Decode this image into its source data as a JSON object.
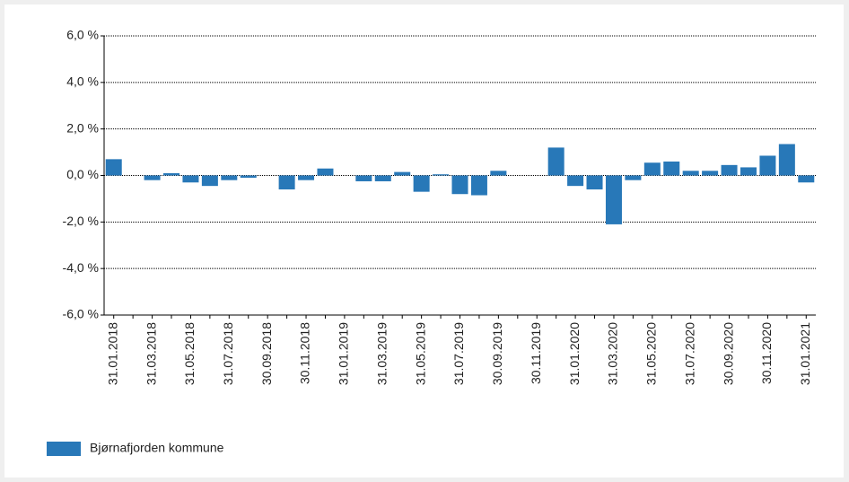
{
  "chart_data": {
    "type": "bar",
    "categories": [
      "31.01.2018",
      null,
      "31.03.2018",
      null,
      "31.05.2018",
      null,
      "31.07.2018",
      null,
      "30.09.2018",
      null,
      "30.11.2018",
      null,
      "31.01.2019",
      null,
      "31.03.2019",
      null,
      "31.05.2019",
      null,
      "31.07.2019",
      null,
      "30.09.2019",
      null,
      "30.11.2019",
      null,
      "31.01.2020",
      null,
      "31.03.2020",
      null,
      "31.05.2020",
      null,
      "31.07.2020",
      null,
      "30.09.2020",
      null,
      "30.11.2020",
      null,
      "31.01.2021"
    ],
    "series": [
      {
        "name": "Bjørnafjorden kommune",
        "color": "#2878b8",
        "values": [
          0.7,
          0.0,
          -0.2,
          0.1,
          -0.3,
          -0.45,
          -0.2,
          -0.1,
          0.0,
          -0.6,
          -0.2,
          0.3,
          0.0,
          -0.25,
          -0.25,
          0.15,
          -0.7,
          0.05,
          -0.8,
          -0.85,
          0.2,
          0.0,
          0.0,
          1.2,
          -0.45,
          -0.6,
          -2.1,
          -0.2,
          0.55,
          0.6,
          0.2,
          0.2,
          0.45,
          0.35,
          0.85,
          1.35,
          -0.3
        ]
      }
    ],
    "ylim": [
      -6,
      6
    ],
    "yticks": [
      {
        "value": -6,
        "label": "-6,0 %"
      },
      {
        "value": -4,
        "label": "-4,0 %"
      },
      {
        "value": -2,
        "label": "-2,0 %"
      },
      {
        "value": 0,
        "label": "0,0 %"
      },
      {
        "value": 2,
        "label": "2,0 %"
      },
      {
        "value": 4,
        "label": "4,0 %"
      },
      {
        "value": 6,
        "label": "6,0 %"
      }
    ],
    "grid": true,
    "legend": "bottom-left"
  }
}
